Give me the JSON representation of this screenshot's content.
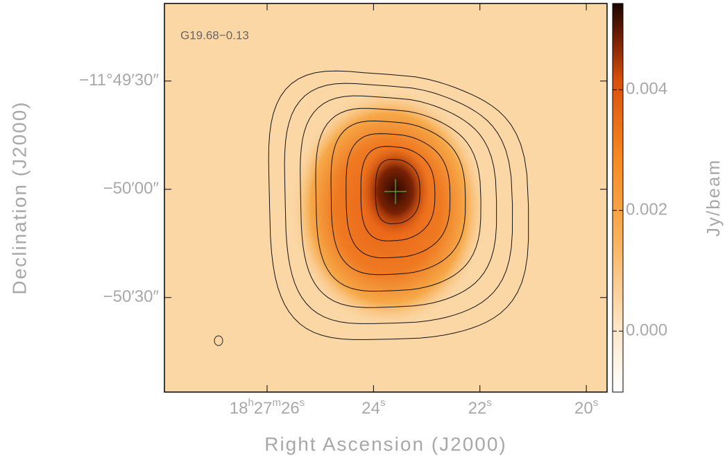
{
  "chart_data": {
    "type": "image",
    "title": "G19.68−0.13",
    "x_label": "Right Ascension (J2000)",
    "y_label": "Declination (J2000)",
    "colorbar_label": "Jy/beam",
    "xlim": [
      27.93,
      19.61
    ],
    "xticks": [
      {
        "value": 26,
        "label": "18h27m26s"
      },
      {
        "value": 24,
        "label": "24s"
      },
      {
        "value": 22,
        "label": "22s"
      },
      {
        "value": 20,
        "label": "20s"
      }
    ],
    "ylim": [
      -42656.2,
      -42548.5
    ],
    "yticks": [
      {
        "value": -42630,
        "label": "−50′30″"
      },
      {
        "value": -42600,
        "label": "−50′00″"
      },
      {
        "value": -42570,
        "label": "−11°49′30″"
      }
    ],
    "clim": [
      -0.00101,
      0.00543
    ],
    "cticks": [
      {
        "value": 0,
        "label": "0.000"
      },
      {
        "value": 0.002,
        "label": "0.002"
      },
      {
        "value": 0.004,
        "label": "0.004"
      }
    ]
  }
}
